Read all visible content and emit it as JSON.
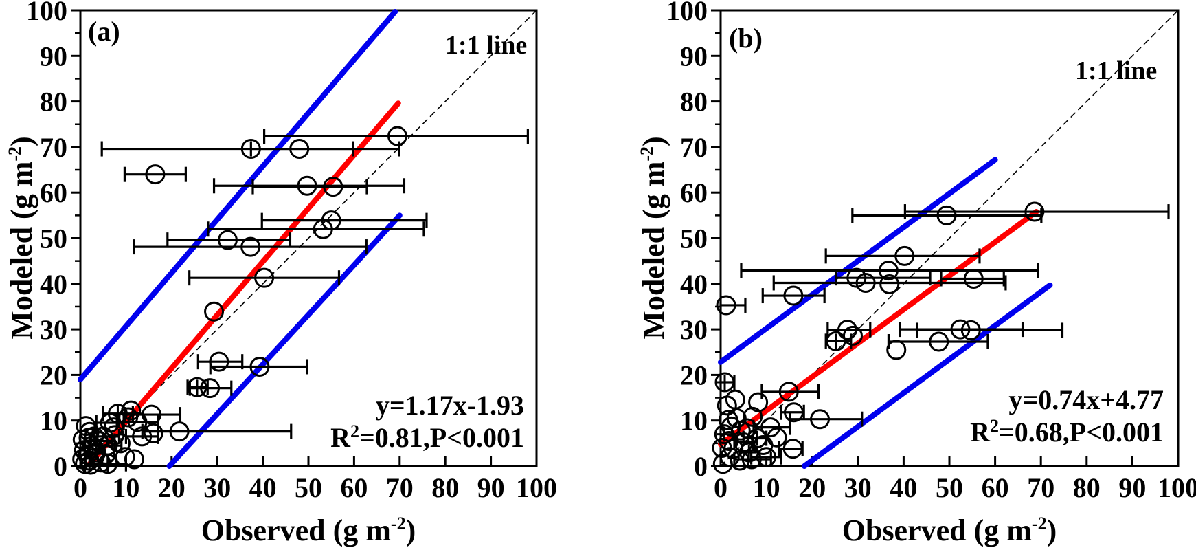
{
  "labels": {
    "x_axis_base": "Observed (g m",
    "x_axis_sup": "-2",
    "x_axis_close": ")",
    "y_axis_base": "Modeled (g m",
    "y_axis_sup": "-2",
    "y_axis_close": ")"
  },
  "chart_data": [
    {
      "id": "a",
      "type": "scatter",
      "panel_label": "(a)",
      "identity_label": "1:1 line",
      "equation": "y=1.17x-1.93",
      "r2_base": "R",
      "r2_sup": "2",
      "r2_rest": "=0.81,P<0.001",
      "xlabel": "Observed (g m-2)",
      "ylabel": "Modeled (g m-2)",
      "xlim": [
        0,
        100
      ],
      "ylim": [
        0,
        100
      ],
      "x_ticks": [
        0,
        10,
        20,
        30,
        40,
        50,
        60,
        70,
        80,
        90,
        100
      ],
      "y_ticks": [
        0,
        10,
        20,
        30,
        40,
        50,
        60,
        70,
        80,
        90,
        100
      ],
      "colors": {
        "regression": "#ff0000",
        "band": "#0000ee",
        "identity": "#000000",
        "marker": "#000000"
      },
      "regression_line": {
        "x1": 2,
        "y1": 0.4,
        "x2": 69.7,
        "y2": 79.6
      },
      "band_upper": {
        "x1": 0,
        "y1": 19,
        "x2": 69,
        "y2": 99.7
      },
      "band_lower": {
        "x1": 19.5,
        "y1": 0,
        "x2": 70,
        "y2": 55
      },
      "identity_line": {
        "x1": 0,
        "y1": 0,
        "x2": 100,
        "y2": 100
      },
      "points": [
        [
          37.4,
          69.6,
          4.7,
          69.9,
          null
        ],
        [
          48,
          69.6,
          37.4,
          59.8,
          null
        ],
        [
          69.5,
          72.4,
          40.3,
          98.1,
          null
        ],
        [
          16.4,
          64,
          9.7,
          23.1,
          null
        ],
        [
          49.7,
          61.5,
          29.3,
          71,
          null
        ],
        [
          55.4,
          61.3,
          37.8,
          62.8,
          null
        ],
        [
          55,
          53.9,
          39.8,
          75.9,
          null
        ],
        [
          53.2,
          52,
          28,
          75.3,
          null
        ],
        [
          32.3,
          49.6,
          19.1,
          46,
          null
        ],
        [
          37.3,
          48.1,
          11.7,
          62.7,
          null
        ],
        [
          40.3,
          41.3,
          23.9,
          56.7,
          null
        ],
        [
          29.3,
          33.9,
          null,
          null,
          null
        ],
        [
          30.4,
          22.9,
          25.8,
          35.5,
          null
        ],
        [
          39.3,
          21.8,
          28.5,
          49.7,
          null
        ],
        [
          25.6,
          17.3,
          23.5,
          27.9,
          1
        ],
        [
          28.4,
          17.1,
          24,
          33.1,
          null
        ],
        [
          11.1,
          12.2,
          null,
          null,
          null
        ],
        [
          15.6,
          11.3,
          9.8,
          21.9,
          null
        ],
        [
          16,
          7.2,
          null,
          null,
          null
        ],
        [
          21.7,
          7.6,
          13.6,
          46.2,
          null
        ],
        [
          3,
          6.5,
          null,
          null,
          null
        ],
        [
          7.3,
          8.5,
          null,
          null,
          null
        ],
        [
          8.8,
          5,
          null,
          null,
          null
        ],
        [
          9.8,
          2,
          null,
          null,
          null
        ],
        [
          11.8,
          1.5,
          null,
          null,
          null
        ],
        [
          1,
          0.5,
          null,
          null,
          null
        ],
        [
          1.5,
          2.5,
          null,
          null,
          null
        ],
        [
          2,
          1.2,
          null,
          null,
          null
        ],
        [
          2.5,
          4.5,
          1,
          4.5,
          null
        ],
        [
          3.5,
          3,
          2,
          5,
          1
        ],
        [
          4,
          5.5,
          2,
          7.5,
          null
        ],
        [
          4.5,
          0.8,
          null,
          null,
          null
        ],
        [
          5,
          6.5,
          3,
          8.5,
          null
        ],
        [
          5.5,
          2.5,
          null,
          null,
          null
        ],
        [
          6,
          4.5,
          3.5,
          9,
          null
        ],
        [
          6.5,
          9.5,
          3.5,
          9.5,
          null
        ],
        [
          7.5,
          6.8,
          null,
          null,
          null
        ],
        [
          2,
          7.5,
          null,
          null,
          null
        ],
        [
          0.8,
          3.5,
          null,
          null,
          null
        ],
        [
          12.5,
          9.7,
          8,
          17,
          null
        ],
        [
          13.5,
          6.5,
          10,
          17,
          null
        ],
        [
          10.5,
          10.7,
          null,
          null,
          null
        ],
        [
          8.2,
          11.5,
          5,
          11.5,
          1
        ],
        [
          0.5,
          5.8,
          null,
          null,
          null
        ],
        [
          1.2,
          8.8,
          null,
          null,
          null
        ],
        [
          6,
          0.5,
          2,
          10,
          null
        ],
        [
          3,
          1.8,
          null,
          null,
          null
        ],
        [
          1.8,
          6.2,
          null,
          null,
          null
        ],
        [
          0.4,
          1.5,
          null,
          null,
          null
        ],
        [
          2.2,
          0.3,
          1,
          6,
          null
        ]
      ]
    },
    {
      "id": "b",
      "type": "scatter",
      "panel_label": "(b)",
      "identity_label": "1:1 line",
      "equation": "y=0.74x+4.77",
      "r2_base": "R",
      "r2_sup": "2",
      "r2_rest": "=0.68,P<0.001",
      "xlabel": "Observed (g m-2)",
      "ylabel": "Modeled (g m-2)",
      "xlim": [
        0,
        100
      ],
      "ylim": [
        0,
        100
      ],
      "x_ticks": [
        0,
        10,
        20,
        30,
        40,
        50,
        60,
        70,
        80,
        90,
        100
      ],
      "y_ticks": [
        0,
        10,
        20,
        30,
        40,
        50,
        60,
        70,
        80,
        90,
        100
      ],
      "colors": {
        "regression": "#ff0000",
        "band": "#0000ee",
        "identity": "#000000",
        "marker": "#000000"
      },
      "regression_line": {
        "x1": 0,
        "y1": 4.77,
        "x2": 69,
        "y2": 55.8
      },
      "band_upper": {
        "x1": 0,
        "y1": 22.8,
        "x2": 60,
        "y2": 67.2
      },
      "band_lower": {
        "x1": 18.3,
        "y1": 0,
        "x2": 72,
        "y2": 39.7
      },
      "identity_line": {
        "x1": 0,
        "y1": 0,
        "x2": 100,
        "y2": 100
      },
      "points": [
        [
          49.4,
          55,
          28.8,
          70.1,
          null
        ],
        [
          68.6,
          55.8,
          40.3,
          97.9,
          null
        ],
        [
          40.2,
          46.1,
          23,
          56.6,
          null
        ],
        [
          36.7,
          42.9,
          4.5,
          69.4,
          null
        ],
        [
          29.7,
          41.3,
          25.2,
          45.8,
          null
        ],
        [
          31.7,
          40.2,
          11.6,
          62.3,
          null
        ],
        [
          36.9,
          39.9,
          null,
          null,
          null
        ],
        [
          55.3,
          41.1,
          48.2,
          61.9,
          null
        ],
        [
          1.2,
          35.3,
          0,
          5.4,
          null
        ],
        [
          15.9,
          37.4,
          9.2,
          22.7,
          null
        ],
        [
          25.2,
          27.4,
          23,
          28.5,
          1
        ],
        [
          27.7,
          29.9,
          23.4,
          32.7,
          null
        ],
        [
          28.9,
          28.6,
          null,
          null,
          null
        ],
        [
          38.4,
          25.5,
          null,
          null,
          null
        ],
        [
          47.7,
          27.3,
          36.7,
          58.4,
          null
        ],
        [
          52.4,
          30,
          39.2,
          66,
          null
        ],
        [
          54.7,
          29.8,
          43,
          74.7,
          null
        ],
        [
          0.9,
          18.4,
          0,
          3,
          1
        ],
        [
          14.9,
          16.3,
          9,
          21.4,
          null
        ],
        [
          16,
          11.8,
          13.2,
          18.2,
          null
        ],
        [
          21.7,
          10.3,
          15.2,
          30.9,
          null
        ],
        [
          15.8,
          3.8,
          12.7,
          17.9,
          null
        ],
        [
          3.2,
          14.6,
          null,
          null,
          null
        ],
        [
          1.4,
          13.3,
          null,
          null,
          null
        ],
        [
          3.5,
          10.5,
          null,
          null,
          null
        ],
        [
          8.2,
          14,
          null,
          null,
          null
        ],
        [
          8,
          6.1,
          5,
          10,
          1
        ],
        [
          10.9,
          8.5,
          7.2,
          15.2,
          null
        ],
        [
          4.4,
          7.8,
          null,
          null,
          null
        ],
        [
          1.7,
          10.1,
          null,
          null,
          null
        ],
        [
          6.2,
          3,
          null,
          null,
          1
        ],
        [
          10,
          2,
          6.7,
          13.2,
          null
        ],
        [
          2,
          2,
          null,
          null,
          null
        ],
        [
          0.3,
          4,
          null,
          null,
          null
        ],
        [
          0.5,
          0.5,
          null,
          null,
          null
        ],
        [
          1.8,
          5.5,
          null,
          null,
          null
        ],
        [
          2.8,
          3.8,
          null,
          null,
          null
        ],
        [
          5,
          5.2,
          3,
          7,
          null
        ],
        [
          5.8,
          8.3,
          null,
          null,
          null
        ],
        [
          7,
          10.8,
          null,
          null,
          null
        ],
        [
          4.2,
          1.2,
          null,
          null,
          null
        ],
        [
          6.8,
          1.5,
          3,
          11,
          null
        ],
        [
          9.3,
          4.6,
          null,
          null,
          null
        ],
        [
          12.3,
          6.3,
          null,
          null,
          null
        ],
        [
          2.3,
          8.7,
          null,
          null,
          null
        ],
        [
          0.8,
          7,
          null,
          null,
          1
        ]
      ]
    }
  ]
}
